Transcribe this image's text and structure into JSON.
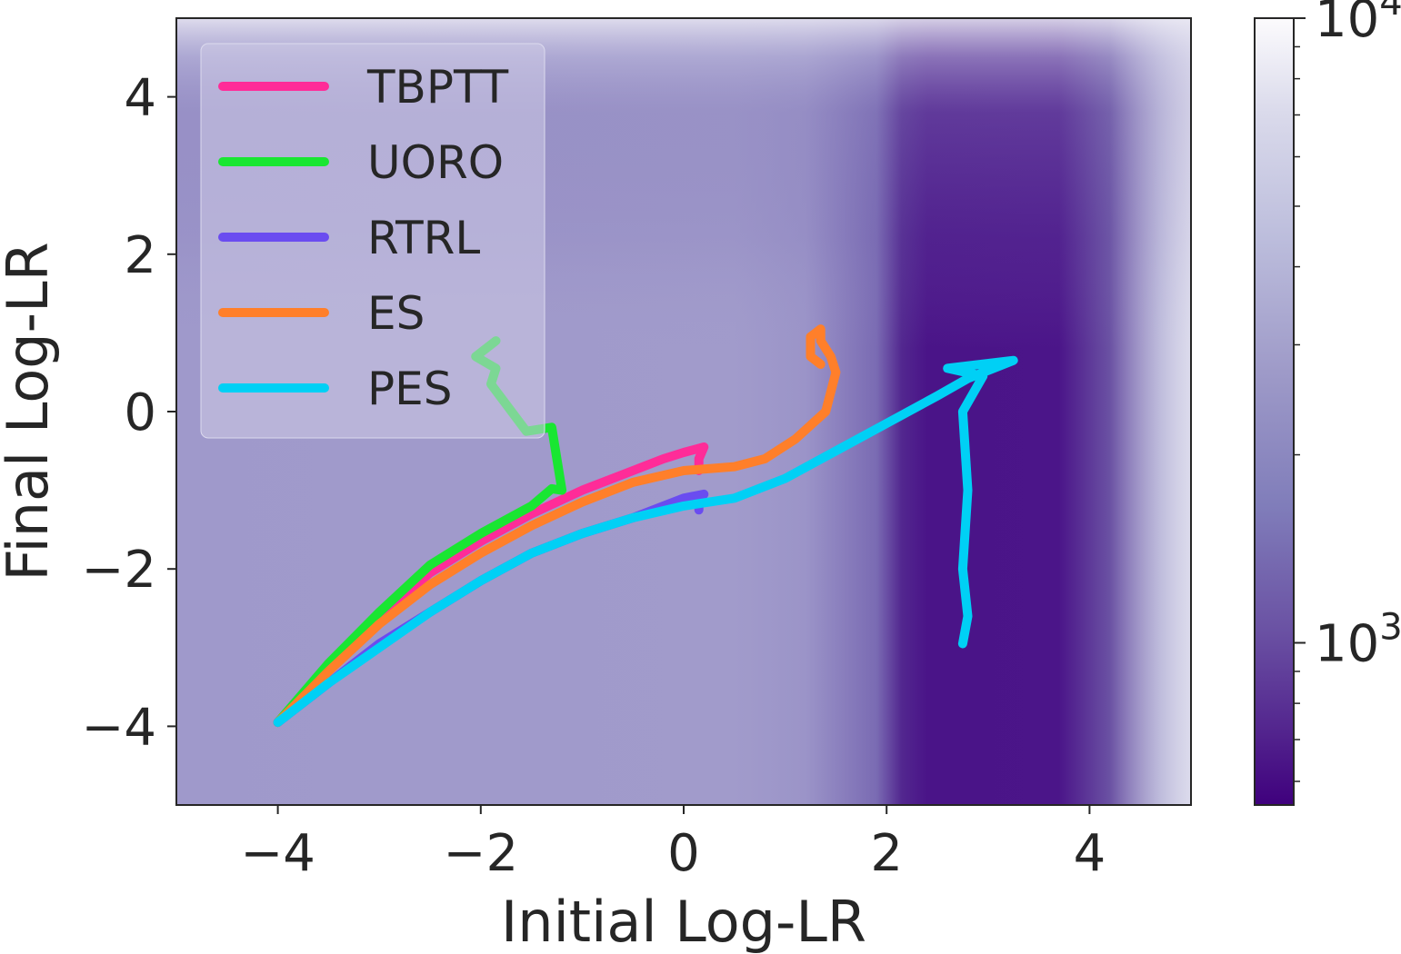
{
  "chart_data": {
    "type": "line",
    "title": "",
    "xlabel": "Initial Log-LR",
    "ylabel": "Final Log-LR",
    "xlim": [
      -5,
      5
    ],
    "ylim": [
      -5,
      5
    ],
    "xticks": [
      -4,
      -2,
      0,
      2,
      4
    ],
    "yticks": [
      -4,
      -2,
      0,
      2,
      4
    ],
    "xtick_labels": [
      "−4",
      "−2",
      "0",
      "2",
      "4"
    ],
    "ytick_labels": [
      "−4",
      "−2",
      "0",
      "2",
      "4"
    ],
    "grid": false,
    "legend_position": "top-left",
    "background": {
      "type": "heatmap",
      "colormap": "Purples_r",
      "description_min": "dark purple minimum region near initial 2.2–4",
      "colorbar": {
        "scale": "log",
        "range": [
          550,
          10000
        ],
        "major_ticks": [
          {
            "value": 1000,
            "base": "10",
            "exponent": "3"
          },
          {
            "value": 10000,
            "base": "10",
            "exponent": "4"
          }
        ],
        "minor_ticks": [
          600,
          700,
          800,
          900,
          2000,
          3000,
          4000,
          5000,
          6000,
          7000,
          8000,
          9000
        ]
      }
    },
    "series": [
      {
        "name": "TBPTT",
        "color": "#ff2c98",
        "x": [
          -4.0,
          -3.5,
          -3.0,
          -2.5,
          -2.0,
          -1.5,
          -1.0,
          -0.5,
          -0.2,
          0.0,
          0.2,
          0.15,
          0.15
        ],
        "y": [
          -3.95,
          -3.25,
          -2.6,
          -2.05,
          -1.65,
          -1.3,
          -1.0,
          -0.75,
          -0.6,
          -0.52,
          -0.45,
          -0.6,
          -0.75
        ]
      },
      {
        "name": "UORO",
        "color": "#19e632",
        "x": [
          -4.0,
          -3.5,
          -3.0,
          -2.5,
          -2.0,
          -1.5,
          -1.3,
          -1.2,
          -1.3,
          -1.55,
          -1.9,
          -1.85,
          -2.05,
          -1.85
        ],
        "y": [
          -3.95,
          -3.2,
          -2.55,
          -1.95,
          -1.55,
          -1.2,
          -0.98,
          -1.0,
          -0.2,
          -0.25,
          0.35,
          0.55,
          0.7,
          0.9
        ]
      },
      {
        "name": "RTRL",
        "color": "#6a4cf0",
        "x": [
          -4.0,
          -3.5,
          -3.0,
          -2.5,
          -2.0,
          -1.5,
          -1.0,
          -0.5,
          -0.2,
          0.0,
          0.2,
          0.15,
          0.15
        ],
        "y": [
          -3.95,
          -3.45,
          -2.95,
          -2.55,
          -2.15,
          -1.8,
          -1.55,
          -1.35,
          -1.2,
          -1.1,
          -1.05,
          -1.15,
          -1.25
        ]
      },
      {
        "name": "ES",
        "color": "#ff7f2a",
        "x": [
          -4.0,
          -3.5,
          -3.0,
          -2.5,
          -2.0,
          -1.5,
          -1.0,
          -0.5,
          0.0,
          0.5,
          0.8,
          1.1,
          1.4,
          1.5,
          1.45,
          1.35,
          1.35,
          1.25,
          1.25,
          1.35
        ],
        "y": [
          -3.95,
          -3.3,
          -2.7,
          -2.2,
          -1.8,
          -1.45,
          -1.15,
          -0.9,
          -0.75,
          -0.7,
          -0.6,
          -0.35,
          0.0,
          0.5,
          0.7,
          0.9,
          1.05,
          0.95,
          0.7,
          0.6
        ]
      },
      {
        "name": "PES",
        "color": "#00d0f5",
        "x": [
          -4.0,
          -3.5,
          -3.0,
          -2.5,
          -2.0,
          -1.5,
          -1.0,
          -0.5,
          0.0,
          0.5,
          1.0,
          1.5,
          2.0,
          2.5,
          2.8,
          3.25,
          2.6,
          2.95,
          2.75,
          2.8,
          2.75,
          2.8,
          2.75
        ],
        "y": [
          -3.95,
          -3.45,
          -3.0,
          -2.55,
          -2.15,
          -1.8,
          -1.55,
          -1.35,
          -1.2,
          -1.1,
          -0.85,
          -0.5,
          -0.15,
          0.2,
          0.42,
          0.65,
          0.55,
          0.45,
          0.0,
          -1.0,
          -2.0,
          -2.6,
          -2.95
        ]
      }
    ]
  }
}
